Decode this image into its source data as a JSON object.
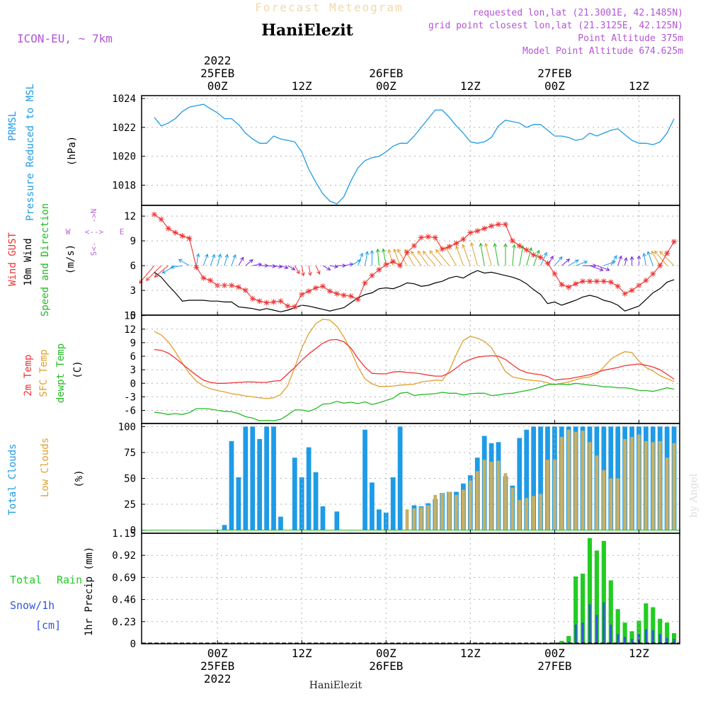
{
  "header": {
    "supertitle": "Forecast Meteogram",
    "station": "HaniElezit",
    "model": "ICON-EU, ~ 7km",
    "info_lines": [
      "requested lon,lat (21.3001E, 42.1485N)",
      "grid point closest lon,lat (21.3125E, 42.125N)",
      "Point Altitude 375m",
      "Model Point Altitude 674.625m"
    ],
    "footer": "HaniElezit",
    "watermark": "by Angel"
  },
  "time_axis": {
    "top_labels": [
      {
        "t": 9,
        "lines": [
          "2022",
          "25FEB",
          "00Z"
        ]
      },
      {
        "t": 21,
        "lines": [
          "12Z"
        ]
      },
      {
        "t": 33,
        "lines": [
          "26FEB",
          "00Z"
        ]
      },
      {
        "t": 45,
        "lines": [
          "12Z"
        ]
      },
      {
        "t": 57,
        "lines": [
          "27FEB",
          "00Z"
        ]
      },
      {
        "t": 69,
        "lines": [
          "12Z"
        ]
      }
    ],
    "bottom_labels": [
      {
        "t": 9,
        "lines": [
          "00Z",
          "25FEB",
          "2022"
        ]
      },
      {
        "t": 21,
        "lines": [
          "12Z"
        ]
      },
      {
        "t": 33,
        "lines": [
          "00Z",
          "26FEB"
        ]
      },
      {
        "t": 45,
        "lines": [
          "12Z"
        ]
      },
      {
        "t": 57,
        "lines": [
          "00Z",
          "27FEB"
        ]
      },
      {
        "t": 69,
        "lines": [
          "12Z"
        ]
      }
    ],
    "t_range": [
      -1.8,
      74.8
    ]
  },
  "colors": {
    "pressure": "#1e9be6",
    "gust": "#ee3333",
    "wind10m": "#000000",
    "temp2m": "#ee3333",
    "sfc": "#e0a030",
    "dewpt": "#22bb22",
    "total_clouds": "#1e9be6",
    "low_clouds": "#c8b064",
    "rain": "#22cc22",
    "snow": "#3355dd",
    "label_purple": "#b455d6",
    "wind_dir_label": "#c060e0",
    "grid": "#b4b4b4"
  },
  "panels": {
    "pressure": {
      "labels": [
        {
          "text": "PRMSL",
          "color": "#1e9be6"
        },
        {
          "text": "Pressure Reduced to MSL",
          "color": "#1e9be6"
        },
        {
          "text": "(hPa)",
          "color": "#000000"
        }
      ],
      "yticks": [
        "1024",
        "1022",
        "1020",
        "1018"
      ]
    },
    "wind": {
      "labels": [
        {
          "text": "Wind GUST",
          "color": "#ee3333"
        },
        {
          "text": "10m Wind",
          "color": "#000000"
        },
        {
          "text": "Speed and Direction",
          "color": "#22bb22"
        },
        {
          "text": "(m/s)",
          "color": "#000000"
        }
      ],
      "compass": {
        "n": "N",
        "s": "S",
        "w": "W",
        "e": "E"
      },
      "yticks": [
        "12",
        "9",
        "6",
        "3",
        "0"
      ]
    },
    "temperature": {
      "labels": [
        {
          "text": "2m Temp",
          "color": "#ee3333"
        },
        {
          "text": "SFC Temp",
          "color": "#e0a030"
        },
        {
          "text": "dewpt Temp",
          "color": "#22bb22"
        },
        {
          "text": "(C)",
          "color": "#000000"
        }
      ],
      "yticks": [
        "15",
        "12",
        "9",
        "6",
        "3",
        "0",
        "-3",
        "-6"
      ]
    },
    "clouds": {
      "labels": [
        {
          "text": "Total Clouds",
          "color": "#1e9be6"
        },
        {
          "text": "Low Clouds",
          "color": "#e0a030"
        },
        {
          "text": "(%)",
          "color": "#000000"
        }
      ],
      "yticks": [
        "100",
        "75",
        "50",
        "25",
        "0"
      ]
    },
    "precip": {
      "labels": [
        {
          "text": "Total",
          "color": "#22cc22"
        },
        {
          "text": "Rain",
          "color": "#22cc22"
        },
        {
          "text": "Snow/1h",
          "color": "#3355dd"
        },
        {
          "text": "[cm]",
          "color": "#3355dd"
        },
        {
          "text": "1hr Precip (mm)",
          "color": "#000000"
        }
      ],
      "yticks": [
        "1.15",
        "0.92",
        "0.69",
        "0.46",
        "0.23",
        "0"
      ]
    }
  },
  "chart_data": {
    "type": "line",
    "x_unit": "hours after 2022-02-24 15Z",
    "hours": [
      0,
      1,
      2,
      3,
      4,
      5,
      6,
      7,
      8,
      9,
      10,
      11,
      12,
      13,
      14,
      15,
      16,
      17,
      18,
      19,
      20,
      21,
      22,
      23,
      24,
      25,
      26,
      27,
      28,
      29,
      30,
      31,
      32,
      33,
      34,
      35,
      36,
      37,
      38,
      39,
      40,
      41,
      42,
      43,
      44,
      45,
      46,
      47,
      48,
      49,
      50,
      51,
      52,
      53,
      54,
      55,
      56,
      57,
      58,
      59,
      60,
      61,
      62,
      63,
      64,
      65,
      66,
      67,
      68,
      69,
      70,
      71,
      72,
      73,
      74
    ],
    "pressure_hpa": {
      "ylim": [
        1016.6,
        1024.2
      ],
      "values": [
        1022.7,
        1022.1,
        1022.3,
        1022.6,
        1023.1,
        1023.4,
        1023.5,
        1023.6,
        1023.3,
        1023.0,
        1022.6,
        1022.6,
        1022.2,
        1021.6,
        1021.2,
        1020.9,
        1020.9,
        1021.4,
        1021.2,
        1021.1,
        1021.0,
        1020.3,
        1019.1,
        1018.2,
        1017.4,
        1016.9,
        1016.7,
        1017.2,
        1018.3,
        1019.2,
        1019.7,
        1019.9,
        1020.0,
        1020.3,
        1020.7,
        1020.9,
        1020.9,
        1021.4,
        1022.0,
        1022.6,
        1023.2,
        1023.2,
        1022.7,
        1022.1,
        1021.6,
        1021.0,
        1020.9,
        1021.0,
        1021.3,
        1022.1,
        1022.5,
        1022.4,
        1022.3,
        1022.0,
        1022.2,
        1022.2,
        1021.8,
        1021.4,
        1021.4,
        1021.3,
        1021.1,
        1021.2,
        1021.6,
        1021.4,
        1021.6,
        1021.8,
        1021.9,
        1021.5,
        1021.1,
        1020.9,
        1020.9,
        1020.8,
        1021.0,
        1021.6,
        1022.6
      ]
    },
    "wind_gust_ms": {
      "ylim": [
        0,
        13.3
      ],
      "values": [
        12.2,
        11.6,
        10.5,
        10.0,
        9.6,
        9.3,
        5.8,
        4.5,
        4.2,
        3.6,
        3.6,
        3.6,
        3.4,
        3.0,
        2.0,
        1.7,
        1.5,
        1.6,
        1.7,
        1.1,
        1.0,
        2.5,
        2.9,
        3.3,
        3.5,
        2.9,
        2.6,
        2.4,
        2.3,
        1.9,
        3.9,
        4.8,
        5.5,
        6.1,
        6.5,
        6.0,
        7.6,
        8.4,
        9.4,
        9.5,
        9.4,
        8.0,
        8.3,
        8.7,
        9.2,
        10.0,
        10.2,
        10.5,
        10.8,
        11.0,
        11.0,
        9.0,
        8.4,
        7.9,
        7.3,
        7.0,
        6.3,
        5.0,
        3.7,
        3.4,
        3.8,
        4.1,
        4.1,
        4.1,
        4.1,
        4.0,
        3.5,
        2.6,
        3.0,
        3.6,
        4.2,
        5.0,
        6.0,
        7.5,
        8.9
      ]
    },
    "wind_10m_ms": {
      "ylim": [
        0,
        13.3
      ],
      "values": [
        5.2,
        4.6,
        3.6,
        2.7,
        1.7,
        1.8,
        1.8,
        1.8,
        1.7,
        1.7,
        1.6,
        1.6,
        1.0,
        0.9,
        0.8,
        0.6,
        0.8,
        0.6,
        0.4,
        0.6,
        0.9,
        1.2,
        1.1,
        0.9,
        0.7,
        0.5,
        0.7,
        0.9,
        1.5,
        2.1,
        2.5,
        2.7,
        3.2,
        3.3,
        3.2,
        3.5,
        3.9,
        3.8,
        3.5,
        3.6,
        3.9,
        4.1,
        4.5,
        4.7,
        4.5,
        5.0,
        5.4,
        5.1,
        5.2,
        5.0,
        4.8,
        4.6,
        4.3,
        3.8,
        3.1,
        2.5,
        1.4,
        1.6,
        1.2,
        1.5,
        1.8,
        2.2,
        2.4,
        2.2,
        1.8,
        1.6,
        1.2,
        0.5,
        0.8,
        1.1,
        1.9,
        2.7,
        3.2,
        4.0,
        4.3
      ]
    },
    "wind_dir_deg": [
      40,
      45,
      50,
      60,
      80,
      120,
      190,
      200,
      200,
      195,
      195,
      200,
      210,
      230,
      260,
      270,
      275,
      280,
      290,
      300,
      330,
      350,
      350,
      335,
      300,
      280,
      270,
      260,
      240,
      200,
      190,
      180,
      175,
      170,
      165,
      160,
      150,
      150,
      145,
      145,
      140,
      140,
      140,
      150,
      160,
      160,
      165,
      170,
      165,
      170,
      180,
      185,
      190,
      195,
      200,
      205,
      210,
      220,
      230,
      240,
      250,
      270,
      290,
      290,
      250,
      210,
      200,
      190,
      180,
      180,
      170,
      160,
      150,
      140,
      135
    ],
    "temp_2m_c": {
      "ylim": [
        -8.9,
        15.1
      ],
      "values": [
        7.5,
        7.3,
        6.7,
        5.6,
        4.3,
        3.0,
        1.8,
        0.7,
        0.2,
        0.0,
        0.0,
        0.1,
        0.2,
        0.3,
        0.3,
        0.2,
        0.2,
        0.5,
        0.6,
        2.1,
        3.5,
        5.1,
        6.5,
        7.7,
        8.9,
        9.6,
        9.7,
        9.2,
        7.8,
        5.5,
        3.6,
        2.2,
        2.1,
        2.1,
        2.5,
        2.6,
        2.4,
        2.3,
        2.1,
        1.8,
        1.6,
        1.6,
        2.3,
        3.4,
        4.6,
        5.3,
        5.8,
        6.0,
        6.1,
        6.0,
        5.3,
        4.1,
        3.0,
        2.4,
        2.1,
        1.9,
        1.5,
        0.7,
        0.9,
        1.0,
        1.3,
        1.6,
        1.9,
        2.4,
        2.9,
        3.2,
        3.5,
        3.9,
        4.1,
        4.3,
        4.0,
        3.6,
        3.0,
        2.0,
        0.9
      ]
    },
    "temp_sfc_c": {
      "ylim": [
        -8.9,
        15.1
      ],
      "values": [
        11.5,
        10.7,
        9.2,
        7.0,
        4.5,
        2.2,
        0.5,
        -0.6,
        -1.2,
        -1.6,
        -1.9,
        -2.3,
        -2.5,
        -2.8,
        -3.0,
        -3.2,
        -3.4,
        -3.2,
        -2.5,
        -0.5,
        3.5,
        7.8,
        11.0,
        13.2,
        14.2,
        14.0,
        12.6,
        10.3,
        7.2,
        3.6,
        1.0,
        -0.1,
        -0.7,
        -0.7,
        -0.6,
        -0.4,
        -0.3,
        -0.2,
        0.3,
        0.5,
        0.7,
        0.6,
        2.8,
        6.4,
        9.5,
        10.4,
        10.0,
        9.3,
        7.9,
        5.3,
        2.6,
        1.4,
        1.1,
        0.8,
        0.6,
        0.5,
        0.1,
        -0.3,
        0.0,
        0.3,
        0.8,
        1.2,
        1.4,
        2.1,
        3.6,
        5.3,
        6.3,
        7.0,
        6.8,
        4.9,
        3.5,
        2.7,
        1.7,
        1.0,
        0.4
      ]
    },
    "dewpt_c": {
      "ylim": [
        -8.9,
        15.1
      ],
      "values": [
        -6.4,
        -6.6,
        -6.9,
        -6.7,
        -6.9,
        -6.5,
        -5.6,
        -5.6,
        -5.7,
        -6.0,
        -6.2,
        -6.3,
        -6.7,
        -7.4,
        -7.7,
        -8.3,
        -8.2,
        -8.3,
        -8.0,
        -7.0,
        -5.9,
        -5.9,
        -6.2,
        -5.6,
        -4.6,
        -4.5,
        -4.0,
        -4.4,
        -4.2,
        -4.5,
        -4.1,
        -4.7,
        -4.3,
        -3.8,
        -3.3,
        -2.2,
        -2.0,
        -2.7,
        -2.5,
        -2.4,
        -2.3,
        -2.0,
        -2.2,
        -2.2,
        -2.6,
        -2.3,
        -2.2,
        -2.2,
        -2.7,
        -2.6,
        -2.3,
        -2.2,
        -1.9,
        -1.6,
        -1.3,
        -0.8,
        -0.3,
        -0.2,
        -0.2,
        -0.3,
        0.0,
        -0.2,
        -0.4,
        -0.5,
        -0.8,
        -0.8,
        -1.0,
        -1.0,
        -1.2,
        -1.6,
        -1.6,
        -1.8,
        -1.4,
        -1.0,
        -1.3
      ]
    },
    "total_clouds_pct": {
      "ylim": [
        -3,
        103
      ],
      "values": [
        0,
        0,
        0,
        0,
        0,
        0,
        0,
        0,
        0,
        0,
        5,
        86,
        51,
        100,
        100,
        88,
        100,
        100,
        13,
        0,
        70,
        51,
        80,
        56,
        23,
        0,
        18,
        0,
        0,
        0,
        97,
        46,
        20,
        17,
        51,
        100,
        0,
        24,
        23,
        26,
        30,
        36,
        37,
        37,
        45,
        53,
        70,
        91,
        84,
        85,
        52,
        43,
        89,
        97,
        100,
        100,
        100,
        100,
        100,
        100,
        100,
        100,
        100,
        100,
        100,
        100,
        100,
        100,
        100,
        100,
        100,
        100,
        100,
        100,
        100
      ]
    },
    "low_clouds_pct": {
      "ylim": [
        -3,
        103
      ],
      "values": [
        0,
        0,
        0,
        0,
        0,
        0,
        0,
        0,
        0,
        0,
        0,
        0,
        0,
        0,
        0,
        0,
        0,
        0,
        0,
        0,
        0,
        0,
        0,
        0,
        0,
        0,
        0,
        0,
        0,
        0,
        0,
        0,
        0,
        0,
        0,
        0,
        20,
        21,
        22,
        24,
        34,
        36,
        37,
        34,
        39,
        48,
        57,
        68,
        66,
        67,
        55,
        41,
        29,
        31,
        33,
        35,
        68,
        68,
        90,
        97,
        95,
        96,
        85,
        72,
        58,
        50,
        50,
        88,
        90,
        92,
        86,
        85,
        86,
        70,
        84
      ]
    },
    "rain_mm": {
      "ylim": [
        0,
        1.15
      ],
      "values": [
        0,
        0,
        0,
        0,
        0,
        0,
        0,
        0,
        0,
        0,
        0,
        0,
        0,
        0,
        0,
        0,
        0,
        0,
        0,
        0,
        0,
        0,
        0,
        0,
        0,
        0,
        0,
        0,
        0,
        0,
        0,
        0,
        0,
        0,
        0,
        0,
        0,
        0,
        0,
        0,
        0,
        0,
        0,
        0,
        0,
        0,
        0,
        0,
        0,
        0,
        0,
        0,
        0,
        0,
        0,
        0,
        0,
        0.01,
        0.03,
        0.08,
        0.7,
        0.73,
        1.1,
        0.97,
        1.07,
        0.66,
        0.36,
        0.22,
        0.13,
        0.24,
        0.42,
        0.38,
        0.26,
        0.22,
        0.11
      ]
    },
    "snow_cm": {
      "ylim": [
        0,
        1.15
      ],
      "values": [
        0,
        0,
        0,
        0,
        0,
        0,
        0,
        0,
        0,
        0,
        0,
        0,
        0,
        0,
        0,
        0,
        0,
        0,
        0,
        0,
        0,
        0,
        0,
        0,
        0,
        0,
        0,
        0,
        0,
        0,
        0,
        0,
        0,
        0,
        0,
        0,
        0,
        0,
        0,
        0,
        0,
        0,
        0,
        0,
        0,
        0,
        0,
        0,
        0,
        0,
        0,
        0,
        0,
        0,
        0,
        0,
        0,
        0,
        0,
        0.02,
        0.2,
        0.22,
        0.41,
        0.3,
        0.43,
        0.2,
        0.1,
        0.07,
        0.05,
        0.1,
        0.15,
        0.14,
        0.1,
        0.06,
        0.05
      ]
    }
  }
}
